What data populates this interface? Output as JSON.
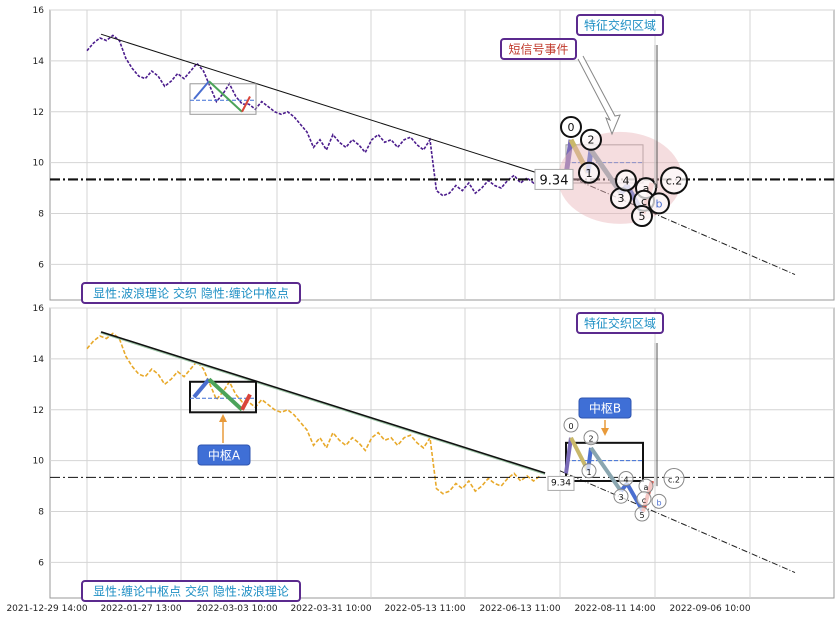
{
  "chart_data": [
    {
      "type": "line",
      "panel": "top",
      "x_ticks": [
        "2021-12-29 14:00",
        "2022-01-27 13:00",
        "2022-03-03 10:00",
        "2022-03-31 10:00",
        "2022-05-13 11:00",
        "2022-06-13 11:00",
        "2022-08-11 14:00",
        "2022-09-06 10:00"
      ],
      "ylim": [
        4.6,
        16
      ],
      "y_ticks": [
        6,
        8,
        10,
        12,
        14,
        16
      ],
      "grid": true,
      "series": [
        {
          "values": [
            14.4,
            14.7,
            14.9,
            14.8,
            15.0,
            14.8,
            14.1,
            13.7,
            13.4,
            13.3,
            13.6,
            13.4,
            13.0,
            13.2,
            13.5,
            13.3,
            13.6,
            13.9,
            13.6,
            13.0,
            12.4,
            12.7,
            13.1,
            12.6,
            12.3,
            12.3,
            12.1,
            12.4,
            12.2,
            12.0,
            11.9,
            12.0,
            11.8,
            11.5,
            11.2,
            10.6,
            10.9,
            10.5,
            11.1,
            10.8,
            10.6,
            10.9,
            10.7,
            10.4,
            10.9,
            11.1,
            10.8,
            10.9,
            10.6,
            10.9,
            11.0,
            10.7,
            10.5,
            10.9,
            8.9,
            8.7,
            8.8,
            9.1,
            8.9,
            9.2,
            8.8,
            9.0,
            9.3,
            9.1,
            9.0,
            9.3,
            9.5,
            9.2,
            9.4,
            9.2,
            9.4
          ]
        }
      ],
      "trend_price_label": "9.34",
      "wave_labels": [
        "0",
        "2",
        "1",
        "3",
        "4",
        "a",
        "c",
        "b",
        "5",
        "c.2"
      ],
      "annotations": [
        "特征交织区域",
        "短信号事件",
        "显性:波浪理论 交织 隐性:缠论中枢点"
      ]
    },
    {
      "type": "line",
      "panel": "bottom",
      "x_ticks": [
        "2021-12-29 14:00",
        "2022-01-27 13:00",
        "2022-03-03 10:00",
        "2022-03-31 10:00",
        "2022-05-13 11:00",
        "2022-06-13 11:00",
        "2022-08-11 14:00",
        "2022-09-06 10:00"
      ],
      "ylim": [
        4.6,
        16
      ],
      "y_ticks": [
        6,
        8,
        10,
        12,
        14,
        16
      ],
      "grid": true,
      "series": [
        {
          "values": [
            14.4,
            14.7,
            14.9,
            14.8,
            15.0,
            14.8,
            14.1,
            13.7,
            13.4,
            13.3,
            13.6,
            13.4,
            13.0,
            13.2,
            13.5,
            13.3,
            13.6,
            13.9,
            13.6,
            13.0,
            12.4,
            12.7,
            13.1,
            12.6,
            12.3,
            12.3,
            12.1,
            12.4,
            12.2,
            12.0,
            11.9,
            12.0,
            11.8,
            11.5,
            11.2,
            10.6,
            10.9,
            10.5,
            11.1,
            10.8,
            10.6,
            10.9,
            10.7,
            10.4,
            10.9,
            11.1,
            10.8,
            10.9,
            10.6,
            10.9,
            11.0,
            10.7,
            10.5,
            10.9,
            8.9,
            8.7,
            8.8,
            9.1,
            8.9,
            9.2,
            8.8,
            9.0,
            9.3,
            9.1,
            9.0,
            9.3,
            9.5,
            9.2,
            9.4,
            9.2,
            9.4
          ]
        }
      ],
      "trend_price_label": "9.34",
      "wave_labels": [
        "0",
        "2",
        "1",
        "3",
        "4",
        "a",
        "c",
        "b",
        "5",
        "c.2"
      ],
      "annotations": [
        "特征交织区域",
        "中枢A",
        "中枢B",
        "显性:缠论中枢点 交织 隐性:波浪理论"
      ]
    }
  ],
  "colors": {
    "top_series": "#4b1c8c",
    "bottom_series": "#e8a92a",
    "callout_text": "#1e8fc4",
    "callout_border": "#5b2a8e",
    "signal_text": "#c0392b",
    "zhongshu_box_bg": "#3f6fd6",
    "wave_blue": "#4a6ed0",
    "wave_green": "#4ca35a",
    "wave_red": "#d9443a"
  }
}
